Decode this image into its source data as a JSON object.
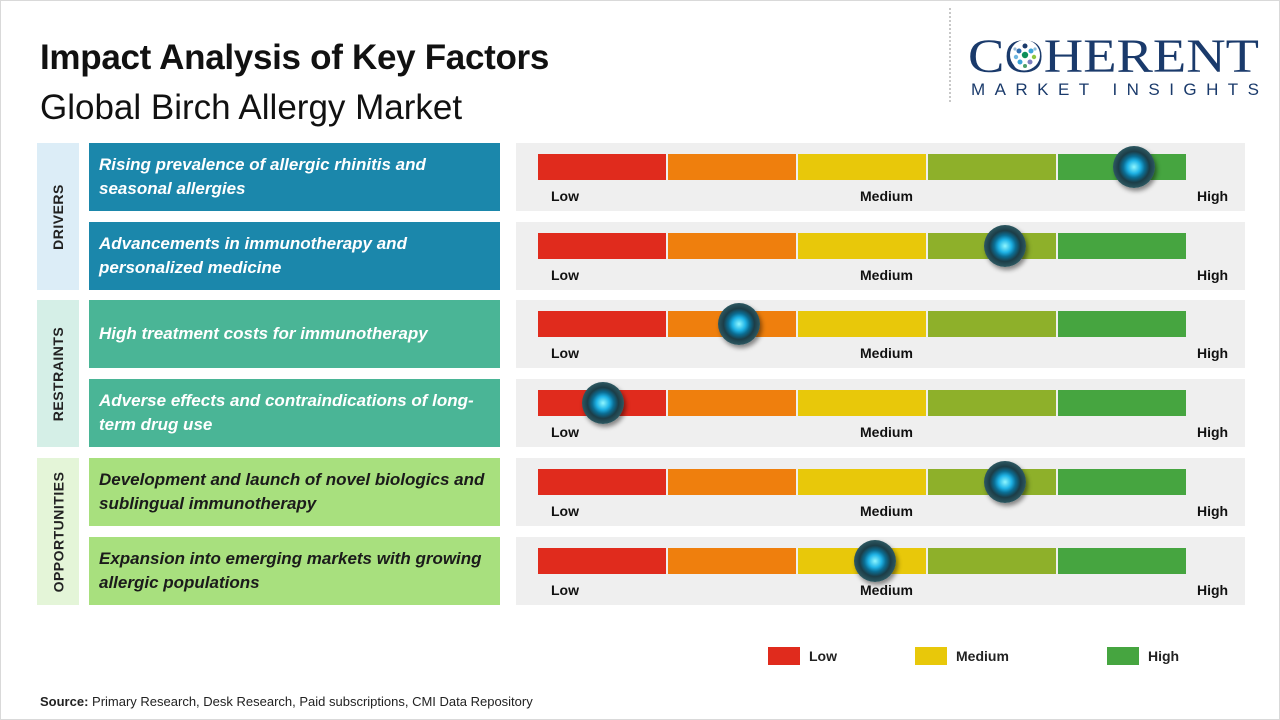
{
  "title": "Impact Analysis of Key Factors",
  "subtitle": "Global Birch Allergy Market",
  "logo": {
    "line1": "COHERENT",
    "line2": "MARKET INSIGHTS"
  },
  "categories": [
    {
      "label": "DRIVERS",
      "bg": "#dcedf7"
    },
    {
      "label": "RESTRAINTS",
      "bg": "#d5efe7"
    },
    {
      "label": "OPPORTUNITIES",
      "bg": "#e4f5d8"
    }
  ],
  "scale": {
    "labels": {
      "low": "Low",
      "medium": "Medium",
      "high": "High"
    },
    "segment_colors": [
      "#e02b1d",
      "#ef7f0d",
      "#e8c80a",
      "#8eb02a",
      "#46a540"
    ]
  },
  "chart_data": {
    "type": "table",
    "title": "Impact Analysis of Key Factors",
    "subtitle": "Global Birch Allergy Market",
    "scale_range": [
      0,
      1
    ],
    "factors": [
      {
        "category": "DRIVERS",
        "text": "Rising prevalence of allergic rhinitis and seasonal allergies",
        "impact": 0.92,
        "color": "#1b87ab",
        "text_color": "#ffffff"
      },
      {
        "category": "DRIVERS",
        "text": "Advancements in immunotherapy and personalized medicine",
        "impact": 0.72,
        "color": "#1b87ab",
        "text_color": "#ffffff"
      },
      {
        "category": "RESTRAINTS",
        "text": "High treatment costs for immunotherapy",
        "impact": 0.31,
        "color": "#4ab596",
        "text_color": "#ffffff"
      },
      {
        "category": "RESTRAINTS",
        "text": "Adverse effects and contraindications of long-term drug use",
        "impact": 0.1,
        "color": "#4ab596",
        "text_color": "#ffffff"
      },
      {
        "category": "OPPORTUNITIES",
        "text": "Development and launch of novel biologics and sublingual immunotherapy",
        "impact": 0.72,
        "color": "#a8e07e",
        "text_color": "#1b1b1b"
      },
      {
        "category": "OPPORTUNITIES",
        "text": "Expansion into emerging markets with growing allergic populations",
        "impact": 0.52,
        "color": "#a8e07e",
        "text_color": "#1b1b1b"
      }
    ],
    "legend": [
      {
        "label": "Low",
        "color": "#e02b1d"
      },
      {
        "label": "Medium",
        "color": "#e8c80a"
      },
      {
        "label": "High",
        "color": "#46a540"
      }
    ]
  },
  "source": {
    "label": "Source:",
    "text": " Primary Research, Desk Research, Paid subscriptions, CMI Data Repository"
  }
}
